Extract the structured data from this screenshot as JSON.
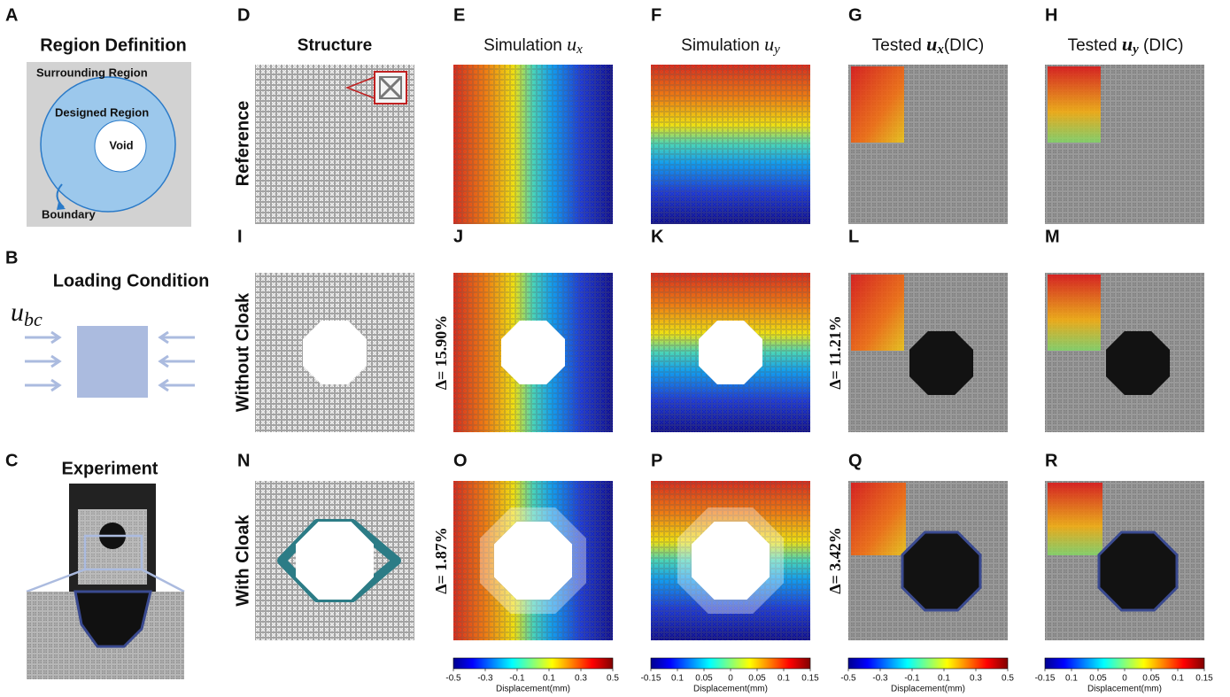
{
  "panel_labels": [
    "A",
    "B",
    "C",
    "D",
    "E",
    "F",
    "G",
    "H",
    "I",
    "J",
    "K",
    "L",
    "M",
    "N",
    "O",
    "P",
    "Q",
    "R"
  ],
  "region_definition": {
    "title": "Region  Definition",
    "surrounding": "Surrounding Region",
    "designed": "Designed  Region",
    "void": "Void",
    "boundary": "Boundary"
  },
  "loading_condition": {
    "title": "Loading  Condition",
    "variable": "u",
    "subscript": "bc"
  },
  "experiment": {
    "title": "Experiment"
  },
  "column_titles": [
    {
      "text": "Structure"
    },
    {
      "text": "Simulation ",
      "var": "u",
      "sub": "x"
    },
    {
      "text": "Simulation ",
      "var": "u",
      "sub": "y"
    },
    {
      "text": "Tested ",
      "var": "u",
      "sub": "x",
      "suffix": "(DIC)"
    },
    {
      "text": "Tested ",
      "var": "u",
      "sub": "y",
      "suffix": " (DIC)"
    }
  ],
  "row_labels": [
    "Reference",
    "Without Cloak",
    "With Cloak"
  ],
  "errors": [
    "Δ= 15.90%",
    "Δ= 11.21%",
    "Δ= 1.87%",
    "Δ= 3.42%"
  ],
  "colorbars": [
    {
      "ticks": [
        "-0.5",
        "-0.3",
        "-0.1",
        "0.1",
        "0.3",
        "0.5"
      ],
      "label": "Displacement(mm)"
    },
    {
      "ticks": [
        "-0.15",
        "0.1",
        "0.05",
        "0",
        "0.05",
        "0.1",
        "0.15"
      ],
      "label": "Displacement(mm)"
    },
    {
      "ticks": [
        "-0.5",
        "-0.3",
        "-0.1",
        "0.1",
        "0.3",
        "0.5"
      ],
      "label": "Displacement(mm)"
    },
    {
      "ticks": [
        "-0.15",
        "0.1",
        "0.05",
        "0",
        "0.05",
        "0.1",
        "0.15"
      ],
      "label": "Displacement(mm)"
    }
  ]
}
